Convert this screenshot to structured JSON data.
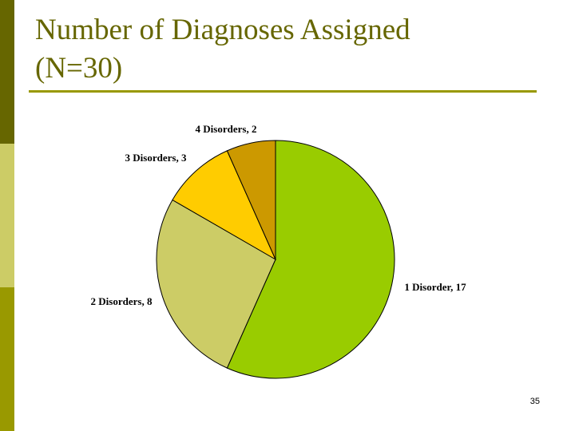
{
  "slide": {
    "title_line1": "Number of Diagnoses Assigned",
    "title_line2": "(N=30)",
    "page_number": "35"
  },
  "colors": {
    "sidebar": [
      "#666600",
      "#cccc66",
      "#999900"
    ],
    "title": "#666600",
    "rule": "#999900"
  },
  "chart_data": {
    "type": "pie",
    "title": "Number of Diagnoses Assigned (N=30)",
    "slices": [
      {
        "label": "1 Disorder, 17",
        "category": "1 Disorder",
        "value": 17,
        "color": "#99cc00"
      },
      {
        "label": "2 Disorders, 8",
        "category": "2 Disorders",
        "value": 8,
        "color": "#cccc66"
      },
      {
        "label": "3 Disorders, 3",
        "category": "3 Disorders",
        "value": 3,
        "color": "#ffcc00"
      },
      {
        "label": "4 Disorders, 2",
        "category": "4 Disorders",
        "value": 2,
        "color": "#cc9900"
      }
    ],
    "legend": "none (data labels)"
  }
}
